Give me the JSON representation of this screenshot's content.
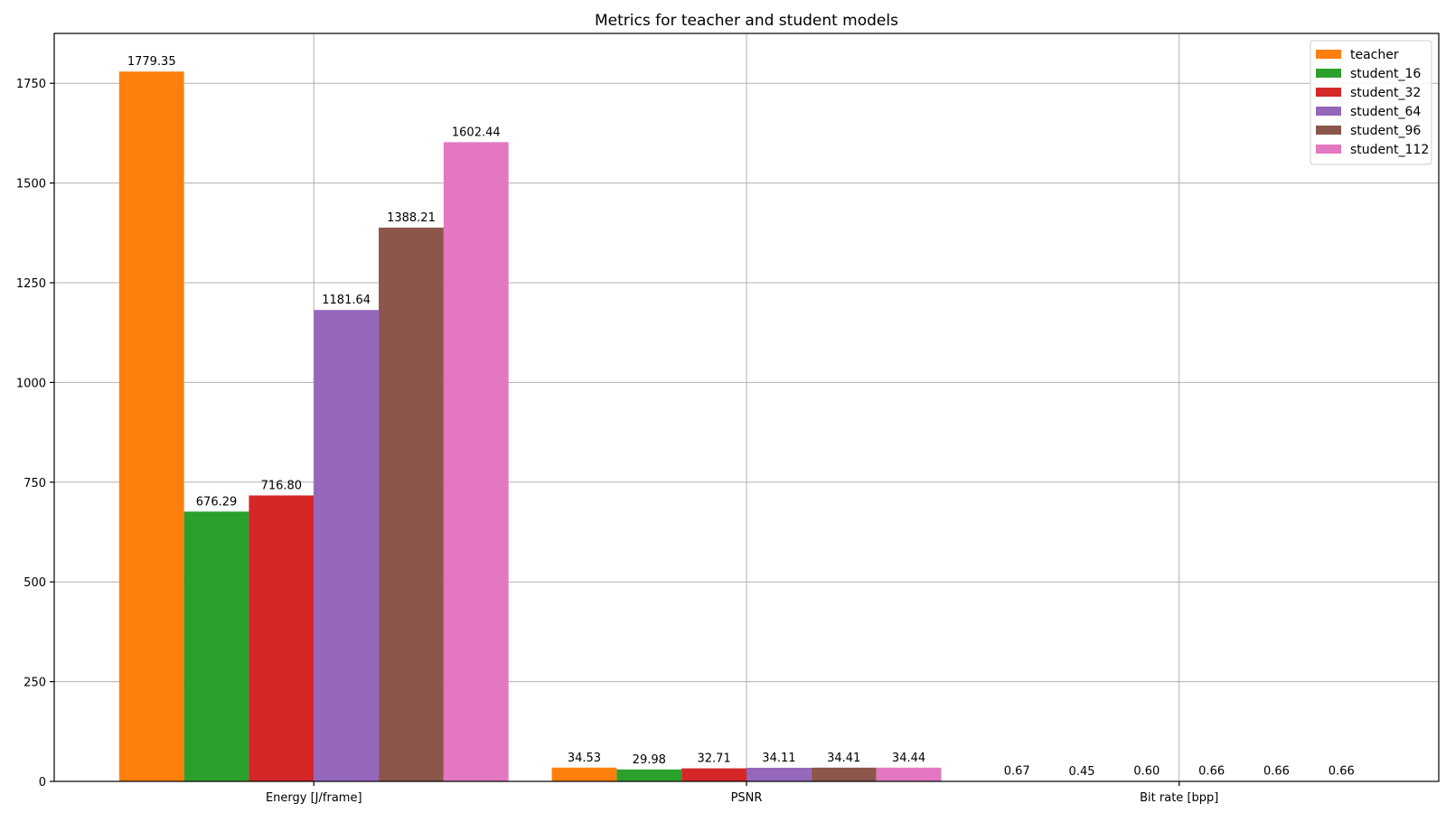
{
  "chart_data": {
    "type": "bar",
    "title": "Metrics for teacher and student models",
    "xlabel": "",
    "ylabel": "",
    "categories": [
      "Energy [J/frame]",
      "PSNR",
      "Bit rate [bpp]"
    ],
    "series": [
      {
        "name": "teacher",
        "color": "#ff7f0e",
        "values": [
          1779.35,
          34.53,
          0.67
        ],
        "labels": [
          "1779.35",
          "34.53",
          "0.67"
        ]
      },
      {
        "name": "student_16",
        "color": "#2ca02c",
        "values": [
          676.29,
          29.98,
          0.45
        ],
        "labels": [
          "676.29",
          "29.98",
          "0.45"
        ]
      },
      {
        "name": "student_32",
        "color": "#d62728",
        "values": [
          716.8,
          32.71,
          0.6
        ],
        "labels": [
          "716.80",
          "32.71",
          "0.60"
        ]
      },
      {
        "name": "student_64",
        "color": "#9467bd",
        "values": [
          1181.64,
          34.11,
          0.66
        ],
        "labels": [
          "1181.64",
          "34.11",
          "0.66"
        ]
      },
      {
        "name": "student_96",
        "color": "#8c564b",
        "values": [
          1388.21,
          34.41,
          0.66
        ],
        "labels": [
          "1388.21",
          "34.41",
          "0.66"
        ]
      },
      {
        "name": "student_112",
        "color": "#e377c2",
        "values": [
          1602.44,
          34.44,
          0.66
        ],
        "labels": [
          "1602.44",
          "34.44",
          "0.66"
        ]
      }
    ],
    "ylim": [
      0,
      1875
    ],
    "yticks": [
      0,
      250,
      500,
      750,
      1000,
      1250,
      1500,
      1750
    ],
    "grid": true,
    "legend_position": "top-right"
  }
}
